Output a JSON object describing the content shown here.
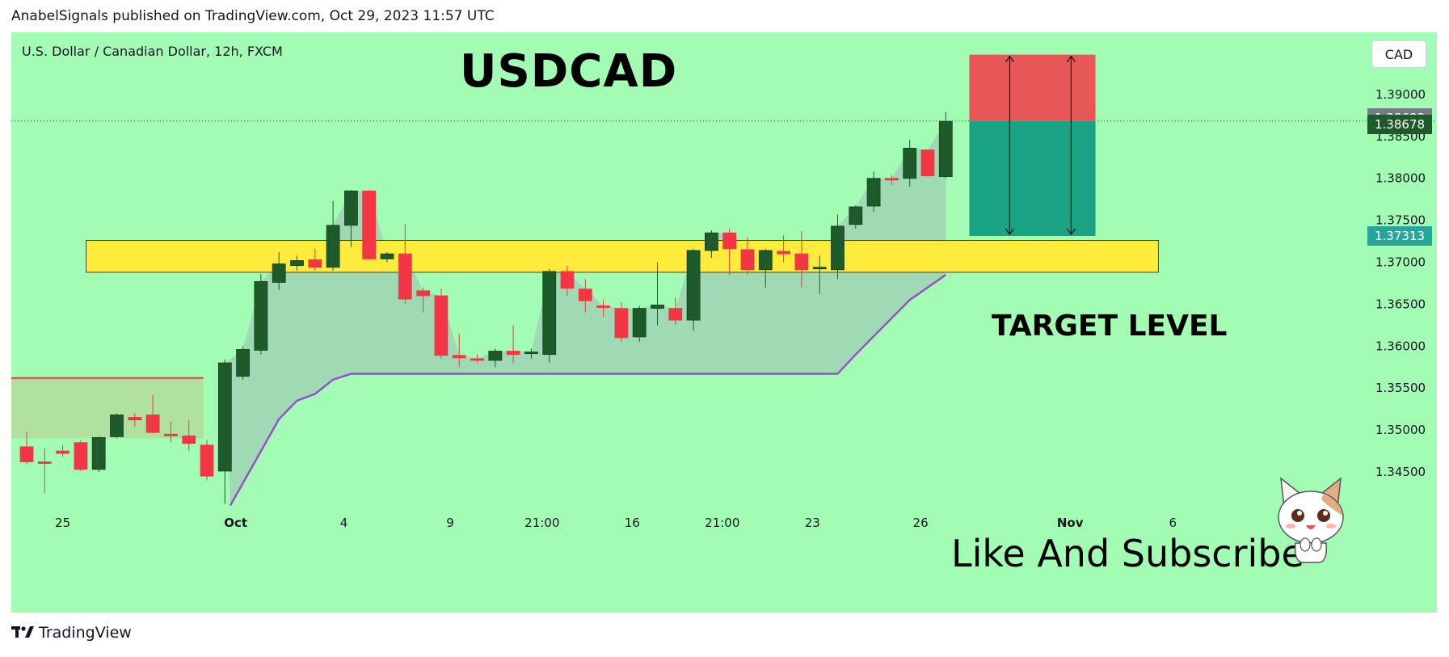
{
  "header": {
    "text": "AnabelSignals published on TradingView.com, Oct 29, 2023 11:57 UTC"
  },
  "chart": {
    "symbol_line": "U.S. Dollar / Canadian Dollar, 12h, FXCM",
    "title": "USDCAD",
    "target_label": "TARGET LEVEL",
    "cta": "Like And Subscribe",
    "currency_button": "CAD",
    "price_tags": [
      {
        "label": "1.38683",
        "value": 1.38683,
        "color": "#787b86"
      },
      {
        "label": "1.38678",
        "value": 1.38678,
        "color": "#1e5b2a"
      },
      {
        "label": "1.37313",
        "value": 1.37313,
        "color": "#26a69a"
      }
    ],
    "colors": {
      "background": "#a2fcb4",
      "bull": "#1e5b2a",
      "bear": "#f23645",
      "zone": "#ffeb3b",
      "indicator": "#9c4dcc",
      "stop_box": "#e85858",
      "target_box": "#1aa284"
    }
  },
  "footer": {
    "brand": "TradingView"
  },
  "chart_data": {
    "type": "candlestick",
    "ylim": [
      1.341,
      1.3925
    ],
    "y_ticks": [
      "1.34500",
      "1.35000",
      "1.35500",
      "1.36000",
      "1.36500",
      "1.37000",
      "1.37500",
      "1.38000",
      "1.38500",
      "1.39000"
    ],
    "x_ticks": [
      {
        "label": "25",
        "index": 2
      },
      {
        "label": "Oct",
        "index": 11.6
      },
      {
        "label": "4",
        "index": 17.6
      },
      {
        "label": "9",
        "index": 23.5
      },
      {
        "label": "21:00",
        "index": 28.6
      },
      {
        "label": "16",
        "index": 33.6
      },
      {
        "label": "21:00",
        "index": 38.6
      },
      {
        "label": "23",
        "index": 43.6
      },
      {
        "label": "26",
        "index": 49.6
      },
      {
        "label": "Nov",
        "index": 57.9
      },
      {
        "label": "6",
        "index": 63.6
      }
    ],
    "candles": [
      [
        1.348,
        1.3498,
        1.3462,
        1.3459
      ],
      [
        1.3462,
        1.3478,
        1.3461,
        1.3425
      ],
      [
        1.3475,
        1.3482,
        1.3472,
        1.3468
      ],
      [
        1.3485,
        1.3488,
        1.3453,
        1.3451
      ],
      [
        1.3453,
        1.3492,
        1.3491,
        1.345
      ],
      [
        1.3492,
        1.352,
        1.3518,
        1.349
      ],
      [
        1.3515,
        1.352,
        1.3512,
        1.3504
      ],
      [
        1.3518,
        1.3542,
        1.3497,
        1.3496
      ],
      [
        1.3495,
        1.351,
        1.3494,
        1.3485
      ],
      [
        1.3493,
        1.3512,
        1.3484,
        1.3475
      ],
      [
        1.3482,
        1.3488,
        1.3445,
        1.344
      ],
      [
        1.3451,
        1.3584,
        1.358,
        1.3412
      ],
      [
        1.3564,
        1.36,
        1.3596,
        1.356
      ],
      [
        1.3595,
        1.3686,
        1.3677,
        1.359
      ],
      [
        1.3676,
        1.3712,
        1.3698,
        1.3667
      ],
      [
        1.3696,
        1.3708,
        1.3702,
        1.369
      ],
      [
        1.3703,
        1.3716,
        1.3694,
        1.369
      ],
      [
        1.3694,
        1.3773,
        1.3744,
        1.369
      ],
      [
        1.3744,
        1.3786,
        1.3785,
        1.3718
      ],
      [
        1.3785,
        1.3786,
        1.3704,
        1.3703
      ],
      [
        1.3704,
        1.3712,
        1.371,
        1.37
      ],
      [
        1.371,
        1.3745,
        1.3656,
        1.365
      ],
      [
        1.3666,
        1.367,
        1.366,
        1.364
      ],
      [
        1.366,
        1.3668,
        1.3589,
        1.3585
      ],
      [
        1.3589,
        1.3615,
        1.3586,
        1.3575
      ],
      [
        1.3585,
        1.359,
        1.3583,
        1.358
      ],
      [
        1.3583,
        1.3597,
        1.3594,
        1.3575
      ],
      [
        1.3594,
        1.3625,
        1.359,
        1.358
      ],
      [
        1.3591,
        1.3597,
        1.3593,
        1.3585
      ],
      [
        1.359,
        1.3692,
        1.3689,
        1.358
      ],
      [
        1.3689,
        1.3696,
        1.3669,
        1.366
      ],
      [
        1.3668,
        1.368,
        1.3654,
        1.364
      ],
      [
        1.3648,
        1.3655,
        1.3647,
        1.3635
      ],
      [
        1.3645,
        1.3652,
        1.361,
        1.3605
      ],
      [
        1.3611,
        1.3648,
        1.3645,
        1.3605
      ],
      [
        1.3645,
        1.37,
        1.3649,
        1.3625
      ],
      [
        1.3645,
        1.3658,
        1.3631,
        1.3625
      ],
      [
        1.3631,
        1.3716,
        1.3714,
        1.3618
      ],
      [
        1.3714,
        1.3738,
        1.3735,
        1.3705
      ],
      [
        1.3735,
        1.374,
        1.3716,
        1.3685
      ],
      [
        1.3715,
        1.373,
        1.3691,
        1.3685
      ],
      [
        1.3691,
        1.3716,
        1.3714,
        1.367
      ],
      [
        1.3713,
        1.3732,
        1.371,
        1.37
      ],
      [
        1.371,
        1.3737,
        1.3691,
        1.367
      ],
      [
        1.3693,
        1.3708,
        1.3694,
        1.3662
      ],
      [
        1.3691,
        1.3757,
        1.3743,
        1.368
      ],
      [
        1.3745,
        1.3768,
        1.3766,
        1.374
      ],
      [
        1.3767,
        1.3808,
        1.38,
        1.376
      ],
      [
        1.38,
        1.3804,
        1.3798,
        1.3792
      ],
      [
        1.38,
        1.3846,
        1.3836,
        1.379
      ],
      [
        1.3834,
        1.3833,
        1.3803,
        1.3802
      ],
      [
        1.3802,
        1.3879,
        1.3868,
        1.38
      ]
    ],
    "indicator_line": [
      [
        11.3,
        1.341
      ],
      [
        14.0,
        1.3513
      ],
      [
        15.0,
        1.3535
      ],
      [
        16.0,
        1.3543
      ],
      [
        17.0,
        1.356
      ],
      [
        18.0,
        1.3567
      ],
      [
        45.0,
        1.3567
      ],
      [
        46.0,
        1.359
      ],
      [
        49.0,
        1.3655
      ],
      [
        51.0,
        1.3685
      ]
    ],
    "zones": [
      {
        "type": "rectangle",
        "x0": 3.3,
        "x1": 62.8,
        "y0": 1.3688,
        "y1": 1.3726,
        "label": "TARGET LEVEL"
      },
      {
        "type": "rectangle",
        "x0": 0,
        "x1": 10.3,
        "y0": 1.349,
        "y1": 1.3562,
        "note": "left range box"
      }
    ],
    "position": {
      "entry": 1.38683,
      "stop": 1.39475,
      "target": 1.37313,
      "x0": 52.8,
      "x1": 59.8
    }
  }
}
